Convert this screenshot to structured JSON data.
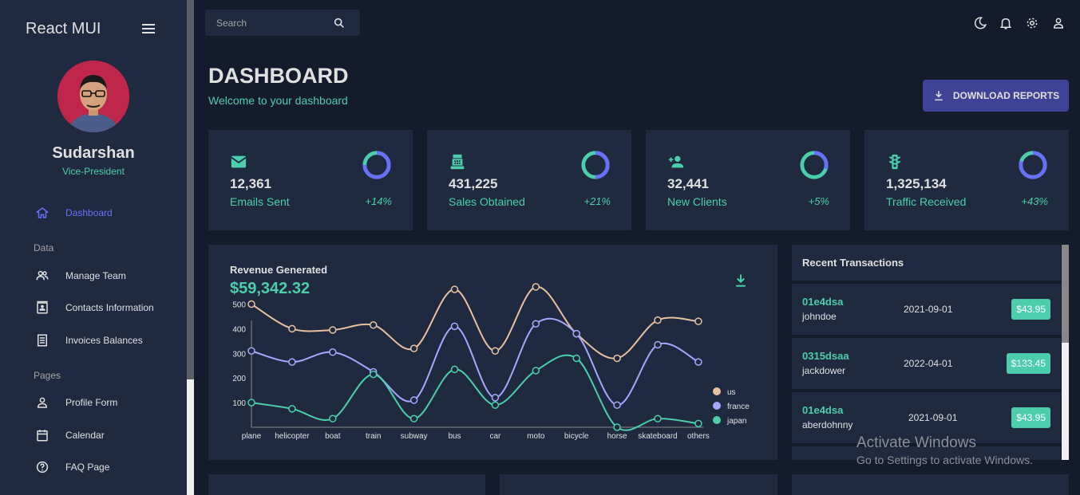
{
  "sidebar": {
    "brand": "React MUI",
    "user": {
      "name": "Sudarshan",
      "role": "Vice-President"
    },
    "items": [
      {
        "label": "Dashboard",
        "icon": "home-icon",
        "active": true
      },
      {
        "label": "Manage Team",
        "icon": "people-icon"
      },
      {
        "label": "Contacts Information",
        "icon": "contacts-icon"
      },
      {
        "label": "Invoices Balances",
        "icon": "receipt-icon"
      },
      {
        "label": "Profile Form",
        "icon": "person-icon"
      },
      {
        "label": "Calendar",
        "icon": "calendar-icon"
      },
      {
        "label": "FAQ Page",
        "icon": "help-icon"
      }
    ],
    "sections": {
      "data": "Data",
      "pages": "Pages"
    }
  },
  "topbar": {
    "search_placeholder": "Search",
    "icons": [
      "dark-mode-icon",
      "notifications-icon",
      "settings-icon",
      "person-icon"
    ]
  },
  "header": {
    "title": "DASHBOARD",
    "subtitle": "Welcome to your dashboard",
    "download_label": "DOWNLOAD REPORTS"
  },
  "stats": [
    {
      "value": "12,361",
      "label": "Emails Sent",
      "increase": "+14%",
      "progress": 0.75,
      "icon": "email-icon"
    },
    {
      "value": "431,225",
      "label": "Sales Obtained",
      "increase": "+21%",
      "progress": 0.5,
      "icon": "point-of-sale-icon"
    },
    {
      "value": "32,441",
      "label": "New Clients",
      "increase": "+5%",
      "progress": 0.3,
      "icon": "person-add-icon"
    },
    {
      "value": "1,325,134",
      "label": "Traffic Received",
      "increase": "+43%",
      "progress": 0.8,
      "icon": "traffic-icon"
    }
  ],
  "revenue": {
    "title": "Revenue Generated",
    "amount": "$59,342.32"
  },
  "chart_data": {
    "type": "line",
    "x": [
      "plane",
      "helicopter",
      "boat",
      "train",
      "subway",
      "bus",
      "car",
      "moto",
      "bicycle",
      "horse",
      "skateboard",
      "others"
    ],
    "yticks": [
      100,
      200,
      300,
      400,
      500
    ],
    "ylim": [
      0,
      560
    ],
    "legend": "right",
    "series": [
      {
        "name": "us",
        "color": "#e8c1a0",
        "values": [
          500,
          400,
          395,
          415,
          320,
          560,
          310,
          570,
          380,
          280,
          435,
          430
        ]
      },
      {
        "name": "france",
        "color": "#a4a9fc",
        "values": [
          310,
          265,
          305,
          225,
          110,
          410,
          120,
          420,
          380,
          90,
          335,
          265
        ]
      },
      {
        "name": "japan",
        "color": "#4cceac",
        "values": [
          100,
          75,
          35,
          215,
          35,
          235,
          90,
          230,
          280,
          0,
          35,
          15
        ]
      }
    ]
  },
  "transactions": {
    "title": "Recent Transactions",
    "rows": [
      {
        "id": "01e4dsa",
        "user": "johndoe",
        "date": "2021-09-01",
        "cost": "$43.95"
      },
      {
        "id": "0315dsaa",
        "user": "jackdower",
        "date": "2022-04-01",
        "cost": "$133.45"
      },
      {
        "id": "01e4dsa",
        "user": "aberdohnny",
        "date": "2021-09-01",
        "cost": "$43.95"
      }
    ]
  },
  "watermark": {
    "line1": "Activate Windows",
    "line2": "Go to Settings to activate Windows."
  }
}
